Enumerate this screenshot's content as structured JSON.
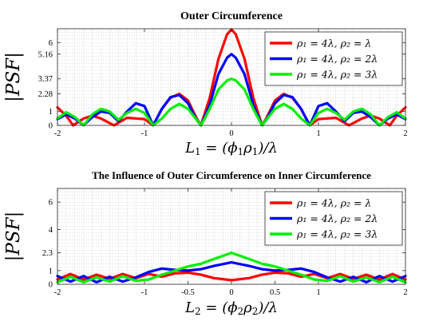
{
  "chart_data": [
    {
      "type": "line",
      "title": "Outer Circumference",
      "xlabel": "L_1 = (ϕ_1ρ_1)/λ",
      "ylabel": "|PSF|",
      "xlim": [
        -2,
        2
      ],
      "ylim": [
        0,
        7
      ],
      "xticks": [
        -2,
        -1,
        0,
        1,
        2
      ],
      "xtick_labels": [
        "-2",
        "-1",
        "0",
        "1",
        "2"
      ],
      "yticks": [
        0,
        1,
        2.28,
        3.37,
        5.16,
        6
      ],
      "ytick_labels": [
        "0",
        "1",
        "2.28",
        "3.37",
        "5.16",
        "6"
      ],
      "grid": true,
      "legend_position": "top-right",
      "series": [
        {
          "name": "ρ₁ = 4λ, ρ₂ = λ",
          "color": "#ff0000",
          "x": [
            -2.0,
            -1.9,
            -1.82,
            -1.7,
            -1.6,
            -1.5,
            -1.35,
            -1.2,
            -1.0,
            -0.9,
            -0.8,
            -0.7,
            -0.6,
            -0.5,
            -0.4,
            -0.35,
            -0.25,
            -0.15,
            -0.05,
            0.0,
            0.05,
            0.15,
            0.25,
            0.35,
            0.4,
            0.5,
            0.6,
            0.7,
            0.8,
            0.9,
            1.0,
            1.2,
            1.35,
            1.5,
            1.6,
            1.7,
            1.82,
            1.9,
            2.0
          ],
          "y": [
            1.3,
            0.7,
            0.0,
            0.5,
            0.7,
            0.5,
            0.0,
            0.55,
            0.45,
            0.0,
            1.2,
            2.0,
            2.28,
            1.8,
            0.5,
            0.0,
            2.0,
            4.8,
            6.6,
            6.95,
            6.6,
            4.8,
            2.0,
            0.0,
            0.5,
            1.8,
            2.28,
            2.0,
            1.2,
            0.0,
            0.45,
            0.55,
            0.0,
            0.5,
            0.7,
            0.5,
            0.0,
            0.7,
            1.3
          ]
        },
        {
          "name": "ρ₁ = 4λ, ρ₂ = 2λ",
          "color": "#0000ff",
          "x": [
            -2.0,
            -1.9,
            -1.8,
            -1.7,
            -1.6,
            -1.5,
            -1.4,
            -1.3,
            -1.2,
            -1.1,
            -1.0,
            -0.9,
            -0.8,
            -0.7,
            -0.6,
            -0.5,
            -0.4,
            -0.35,
            -0.25,
            -0.15,
            -0.05,
            0.0,
            0.05,
            0.15,
            0.25,
            0.35,
            0.4,
            0.5,
            0.6,
            0.7,
            0.8,
            0.9,
            1.0,
            1.1,
            1.2,
            1.3,
            1.4,
            1.5,
            1.6,
            1.7,
            1.8,
            1.9,
            2.0
          ],
          "y": [
            0.45,
            0.8,
            0.5,
            0.0,
            0.6,
            1.0,
            0.9,
            0.3,
            1.0,
            1.6,
            1.4,
            0.0,
            1.2,
            2.05,
            2.2,
            1.6,
            0.4,
            0.0,
            1.5,
            3.7,
            4.9,
            5.16,
            4.9,
            3.7,
            1.5,
            0.0,
            0.4,
            1.6,
            2.2,
            2.05,
            1.2,
            0.0,
            1.4,
            1.6,
            1.0,
            0.3,
            0.9,
            1.0,
            0.6,
            0.0,
            0.5,
            0.8,
            0.45
          ]
        },
        {
          "name": "ρ₁ = 4λ, ρ₂ = 3λ",
          "color": "#00ee00",
          "x": [
            -2.0,
            -1.9,
            -1.8,
            -1.7,
            -1.6,
            -1.5,
            -1.4,
            -1.3,
            -1.2,
            -1.1,
            -1.0,
            -0.9,
            -0.8,
            -0.7,
            -0.6,
            -0.5,
            -0.4,
            -0.35,
            -0.25,
            -0.15,
            -0.05,
            0.0,
            0.05,
            0.15,
            0.25,
            0.35,
            0.4,
            0.5,
            0.6,
            0.7,
            0.8,
            0.9,
            1.0,
            1.1,
            1.2,
            1.3,
            1.4,
            1.5,
            1.6,
            1.7,
            1.8,
            1.9,
            2.0
          ],
          "y": [
            0.5,
            0.95,
            0.6,
            0.0,
            0.8,
            1.2,
            1.0,
            0.4,
            0.9,
            1.2,
            0.9,
            0.0,
            0.5,
            1.2,
            1.55,
            1.2,
            0.4,
            0.0,
            1.2,
            2.6,
            3.25,
            3.37,
            3.25,
            2.6,
            1.2,
            0.0,
            0.4,
            1.2,
            1.55,
            1.2,
            0.5,
            0.0,
            0.9,
            1.2,
            0.9,
            0.4,
            1.0,
            1.2,
            0.8,
            0.0,
            0.6,
            0.95,
            0.5
          ]
        }
      ]
    },
    {
      "type": "line",
      "title": "The Influence of Outer Circumference on Inner Circumference",
      "xlabel": "L_2 = (ϕ_2ρ_2)/λ",
      "ylabel": "|PSF|",
      "xlim": [
        -2,
        2
      ],
      "ylim": [
        0,
        7
      ],
      "xticks": [
        -2,
        -1,
        -0.5,
        0,
        0.5,
        1,
        2
      ],
      "xtick_labels": [
        "-2",
        "-1",
        "-0.5",
        "0",
        "0.5",
        "1",
        "2"
      ],
      "yticks": [
        0,
        1,
        2.3,
        4,
        6
      ],
      "ytick_labels": [
        "0",
        "1",
        "2.3",
        "4",
        "6"
      ],
      "grid": true,
      "legend_position": "top-right",
      "series": [
        {
          "name": "ρ₁ = 4λ, ρ₂ = λ",
          "color": "#ff0000",
          "x": [
            -2.0,
            -1.85,
            -1.7,
            -1.55,
            -1.4,
            -1.25,
            -1.1,
            -0.95,
            -0.8,
            -0.65,
            -0.5,
            -0.35,
            -0.2,
            0.0,
            0.2,
            0.35,
            0.5,
            0.65,
            0.8,
            0.95,
            1.1,
            1.25,
            1.4,
            1.55,
            1.7,
            1.85,
            2.0
          ],
          "y": [
            0.35,
            0.75,
            0.35,
            0.7,
            0.4,
            0.75,
            0.45,
            0.75,
            0.55,
            0.8,
            0.85,
            0.7,
            0.45,
            0.3,
            0.45,
            0.7,
            0.85,
            0.8,
            0.55,
            0.75,
            0.45,
            0.75,
            0.4,
            0.7,
            0.35,
            0.75,
            0.35
          ]
        },
        {
          "name": "ρ₁ = 4λ, ρ₂ = 2λ",
          "color": "#0000ff",
          "x": [
            -2.0,
            -1.85,
            -1.7,
            -1.55,
            -1.4,
            -1.25,
            -1.1,
            -0.95,
            -0.8,
            -0.65,
            -0.5,
            -0.35,
            -0.2,
            0.0,
            0.2,
            0.35,
            0.5,
            0.65,
            0.8,
            0.95,
            1.1,
            1.25,
            1.4,
            1.55,
            1.7,
            1.85,
            2.0
          ],
          "y": [
            0.6,
            0.2,
            0.6,
            0.15,
            0.55,
            0.2,
            0.5,
            0.9,
            1.15,
            1.05,
            1.0,
            1.1,
            1.35,
            1.6,
            1.35,
            1.1,
            1.0,
            1.05,
            1.15,
            0.9,
            0.5,
            0.2,
            0.55,
            0.15,
            0.6,
            0.2,
            0.6
          ]
        },
        {
          "name": "ρ₁ = 4λ, ρ₂ = 3λ",
          "color": "#00ee00",
          "x": [
            -2.0,
            -1.85,
            -1.7,
            -1.55,
            -1.4,
            -1.25,
            -1.1,
            -0.95,
            -0.8,
            -0.65,
            -0.5,
            -0.35,
            -0.2,
            0.0,
            0.2,
            0.35,
            0.5,
            0.65,
            0.8,
            0.95,
            1.1,
            1.25,
            1.4,
            1.55,
            1.7,
            1.85,
            2.0
          ],
          "y": [
            0.15,
            0.55,
            0.15,
            0.5,
            0.2,
            0.6,
            0.25,
            0.35,
            0.7,
            1.0,
            1.3,
            1.5,
            1.85,
            2.3,
            1.85,
            1.5,
            1.3,
            1.0,
            0.7,
            0.35,
            0.25,
            0.6,
            0.2,
            0.5,
            0.15,
            0.55,
            0.15
          ]
        }
      ]
    }
  ]
}
